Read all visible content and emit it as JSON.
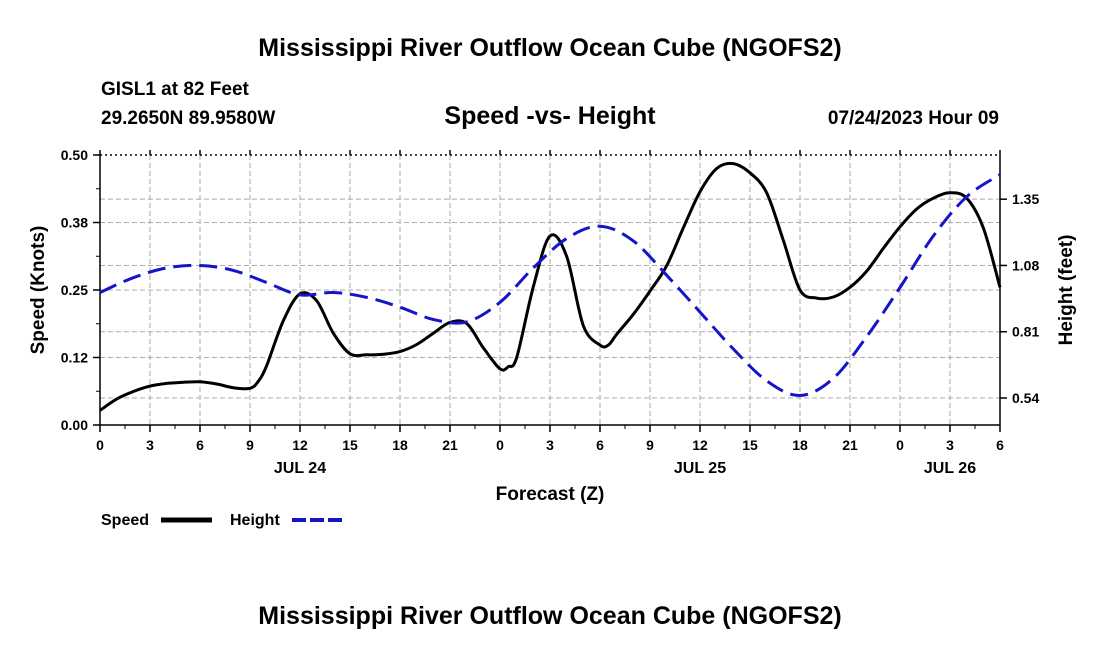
{
  "header": {
    "title": "Mississippi River Outflow Ocean Cube (NGOFS2)",
    "station": "GISL1 at 82 Feet",
    "coords": "29.2650N  89.9580W",
    "subtitle": "Speed -vs- Height",
    "datetime": "07/24/2023 Hour 09"
  },
  "footer": {
    "title": "Mississippi River Outflow Ocean Cube (NGOFS2)"
  },
  "legend": {
    "speed_label": "Speed",
    "height_label": "Height"
  },
  "colors": {
    "speed": "#000000",
    "height": "#1515c8",
    "grid": "#aaaaaa"
  },
  "chart_data": {
    "type": "line",
    "title": "Speed -vs- Height",
    "xlabel": "Forecast (Z)",
    "ylabel": "Speed (Knots)",
    "ylabel_right": "Height (feet)",
    "xlim": [
      0,
      54
    ],
    "ylim": [
      0.0,
      0.5
    ],
    "ylim_right": [
      0.43,
      1.53
    ],
    "grid": true,
    "legend_position": "bottom-left",
    "x_ticks": [
      0,
      3,
      6,
      9,
      12,
      15,
      18,
      21,
      24,
      27,
      30,
      33,
      36,
      39,
      42,
      45,
      48,
      51,
      54
    ],
    "x_tick_labels": [
      "0",
      "3",
      "6",
      "9",
      "12",
      "15",
      "18",
      "21",
      "0",
      "3",
      "6",
      "9",
      "12",
      "15",
      "18",
      "21",
      "0",
      "3",
      "6"
    ],
    "day_labels": [
      {
        "x": 12,
        "label": "JUL 24"
      },
      {
        "x": 36,
        "label": "JUL 25"
      },
      {
        "x": 51,
        "label": "JUL 26"
      }
    ],
    "y_ticks": [
      0.0,
      0.125,
      0.25,
      0.375,
      0.5
    ],
    "y_tick_labels": [
      "0.00",
      "0.12",
      "0.25",
      "0.38",
      "0.50"
    ],
    "y_right_ticks": [
      0.54,
      0.81,
      1.08,
      1.35
    ],
    "y_right_tick_labels": [
      "0.54",
      "0.81",
      "1.08",
      "1.35"
    ],
    "series": [
      {
        "name": "Speed",
        "axis": "left",
        "style": "solid",
        "x": [
          0,
          1,
          2,
          3,
          4,
          5,
          6,
          7,
          8,
          9,
          9.5,
          10,
          11,
          12,
          13,
          14,
          15,
          16,
          17,
          18,
          19,
          20,
          21,
          22,
          23,
          24,
          24.5,
          25,
          26,
          27,
          28,
          29,
          30,
          30.5,
          31,
          32,
          33,
          34,
          35,
          36,
          37,
          38,
          39,
          40,
          41,
          42,
          43,
          44,
          45,
          46,
          47,
          48,
          49,
          50,
          51,
          52,
          53,
          54
        ],
        "values": [
          0.027,
          0.048,
          0.062,
          0.072,
          0.077,
          0.079,
          0.08,
          0.076,
          0.069,
          0.068,
          0.081,
          0.11,
          0.193,
          0.243,
          0.23,
          0.17,
          0.132,
          0.13,
          0.131,
          0.136,
          0.149,
          0.17,
          0.19,
          0.188,
          0.143,
          0.104,
          0.108,
          0.125,
          0.256,
          0.35,
          0.312,
          0.184,
          0.148,
          0.148,
          0.168,
          0.205,
          0.248,
          0.295,
          0.365,
          0.432,
          0.475,
          0.484,
          0.467,
          0.43,
          0.342,
          0.25,
          0.235,
          0.237,
          0.255,
          0.285,
          0.327,
          0.367,
          0.4,
          0.42,
          0.43,
          0.42,
          0.365,
          0.255
        ]
      },
      {
        "name": "Height",
        "axis": "right",
        "style": "dashed",
        "x": [
          0,
          2,
          4,
          6,
          8,
          10,
          12,
          14,
          16,
          18,
          20,
          22,
          24,
          26,
          28,
          30,
          32,
          34,
          36,
          38,
          40,
          42,
          44,
          46,
          48,
          50,
          52,
          54
        ],
        "values": [
          0.97,
          1.03,
          1.07,
          1.08,
          1.06,
          1.01,
          0.96,
          0.97,
          0.95,
          0.91,
          0.86,
          0.85,
          0.93,
          1.07,
          1.19,
          1.24,
          1.18,
          1.04,
          0.89,
          0.74,
          0.61,
          0.55,
          0.62,
          0.79,
          0.99,
          1.2,
          1.36,
          1.45
        ]
      }
    ]
  }
}
